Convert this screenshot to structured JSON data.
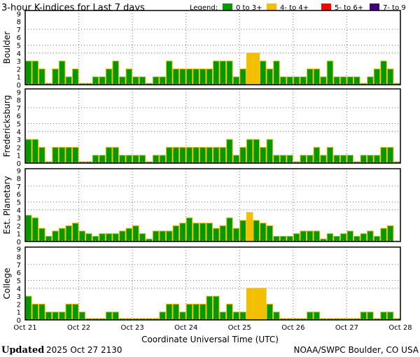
{
  "chart_data": [
    {
      "type": "bar",
      "title": "3-hour K-indices for Last 7 days",
      "panel_label": "Boulder",
      "ylim": [
        0,
        9
      ],
      "values": [
        3,
        3,
        2,
        0,
        2,
        3,
        1,
        2,
        0,
        0,
        1,
        1,
        2,
        3,
        1,
        2,
        1,
        1,
        0,
        1,
        1,
        3,
        2,
        2,
        2,
        2,
        2,
        2,
        3,
        3,
        3,
        1,
        2,
        4,
        4,
        3,
        2,
        3,
        1,
        1,
        1,
        1,
        2,
        2,
        1,
        3,
        1,
        1,
        1,
        1,
        0,
        1,
        2,
        3,
        2,
        0
      ]
    },
    {
      "type": "bar",
      "panel_label": "Fredericksburg",
      "ylim": [
        0,
        9
      ],
      "values": [
        3,
        3,
        2,
        0,
        2,
        2,
        2,
        2,
        0,
        0,
        1,
        1,
        2,
        2,
        1,
        1,
        1,
        1,
        0,
        1,
        1,
        2,
        2,
        2,
        2,
        2,
        2,
        2,
        2,
        2,
        3,
        1,
        2,
        3,
        3,
        2,
        3,
        1,
        1,
        1,
        0,
        1,
        1,
        2,
        1,
        2,
        1,
        1,
        1,
        0,
        1,
        1,
        1,
        2,
        2,
        0
      ]
    },
    {
      "type": "bar",
      "panel_label": "Est. Planetary",
      "ylim": [
        0,
        9
      ],
      "values": [
        3.33,
        3,
        1.67,
        0.67,
        1.33,
        1.67,
        2,
        2.33,
        1.33,
        1,
        0.67,
        1,
        1,
        1,
        1.33,
        1.67,
        2,
        1,
        0.33,
        1.33,
        1.33,
        1.33,
        2,
        2.33,
        3,
        2.33,
        2.33,
        2.33,
        1.67,
        2,
        3,
        1.67,
        2.67,
        3.67,
        2.67,
        2.33,
        2,
        0.67,
        0.67,
        0.67,
        1,
        1.33,
        1.33,
        1.33,
        0.33,
        1,
        0.67,
        1,
        1.33,
        0.67,
        1,
        1.33,
        0.67,
        1.67,
        2,
        null
      ]
    },
    {
      "type": "bar",
      "panel_label": "College",
      "ylim": [
        0,
        9
      ],
      "values": [
        3,
        2,
        2,
        1,
        1,
        1,
        2,
        2,
        1,
        0,
        0,
        0,
        1,
        1,
        0,
        0,
        0,
        0,
        0,
        0,
        1,
        2,
        2,
        1,
        2,
        2,
        2,
        3,
        3,
        1,
        2,
        1,
        1,
        4,
        4,
        4,
        2,
        1,
        0,
        0,
        0,
        0,
        1,
        1,
        0,
        0,
        0,
        0,
        0,
        0,
        1,
        1,
        0,
        1,
        1,
        0
      ]
    }
  ],
  "title": "3-hour K-indices for Last 7 days",
  "legend": {
    "label": "Legend:",
    "entries": [
      {
        "label": "0 to 3+",
        "color": "#009900"
      },
      {
        "label": "4- to 4+",
        "color": "#f2c000"
      },
      {
        "label": "5- to 6+",
        "color": "#ff0000"
      },
      {
        "label": "7- to 9",
        "color": "#400080"
      }
    ]
  },
  "y_ticks": [
    "0",
    "1",
    "2",
    "3",
    "4",
    "5",
    "6",
    "7",
    "8",
    "9"
  ],
  "x_ticks": [
    "Oct 21",
    "Oct 22",
    "Oct 23",
    "Oct 24",
    "Oct 25",
    "Oct 26",
    "Oct 27",
    "Oct 28"
  ],
  "xlabel": "Coordinate Universal Time (UTC)",
  "footer": {
    "updated_label": "Updated",
    "updated_value": "2025 Oct 27 2130",
    "source": "NOAA/SWPC Boulder, CO USA"
  },
  "colors": {
    "bar_border": "#f2c000",
    "grid": "#777777"
  }
}
